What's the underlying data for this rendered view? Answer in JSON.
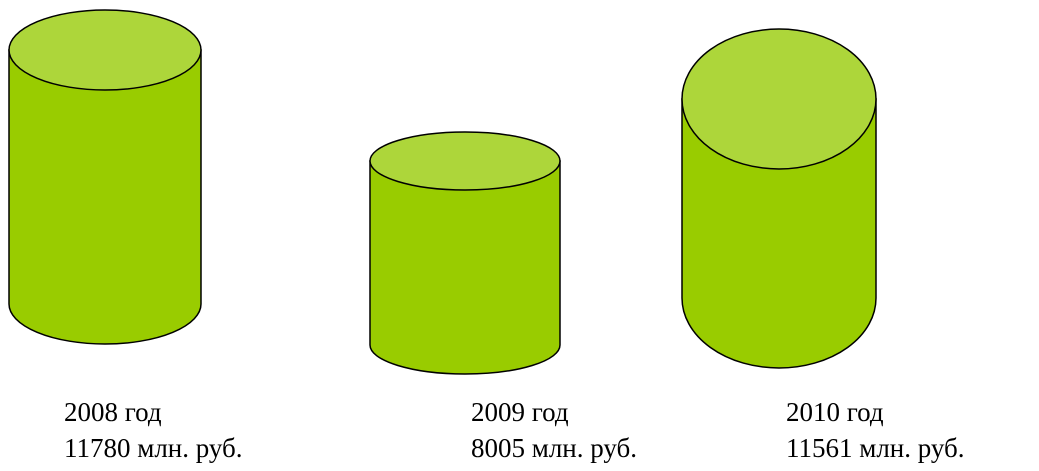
{
  "chart_data": {
    "type": "bar",
    "style": "3d-cylinders",
    "title": "",
    "categories": [
      "2008 год",
      "2009 год",
      "2010 год"
    ],
    "values": [
      11780,
      8005,
      11561
    ],
    "value_labels": [
      "11780 млн. руб.",
      "8005 млн. руб.",
      "11561 млн. руб."
    ],
    "unit": "млн. руб.",
    "xlabel": "",
    "ylabel": "",
    "grid": false,
    "legend": "none"
  },
  "colors": {
    "body": "#99cc00",
    "top": "#add63a",
    "outline": "#000000"
  }
}
